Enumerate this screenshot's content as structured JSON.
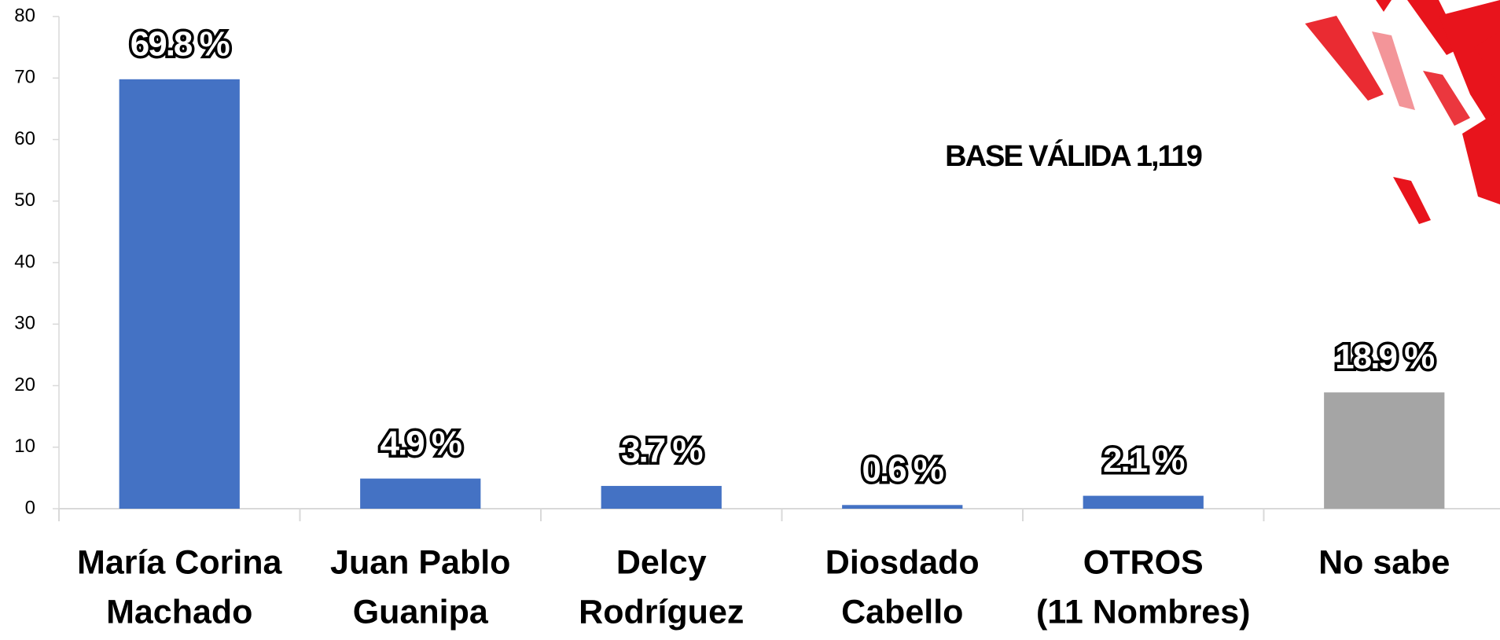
{
  "chart_data": {
    "type": "bar",
    "annotation": "BASE VÁLIDA 1,119",
    "categories": [
      [
        "María Corina",
        "Machado"
      ],
      [
        "Juan Pablo",
        "Guanipa"
      ],
      [
        "Delcy",
        "Rodríguez"
      ],
      [
        "Diosdado",
        "Cabello"
      ],
      [
        "OTROS",
        "(11 Nombres)"
      ],
      [
        "No sabe"
      ]
    ],
    "values": [
      69.8,
      4.9,
      3.7,
      0.6,
      2.1,
      18.9
    ],
    "value_labels": [
      "69.8 %",
      "4.9 %",
      "3.7 %",
      "0.6 %",
      "2.1 %",
      "18.9 %"
    ],
    "colors": [
      "#4472c4",
      "#4472c4",
      "#4472c4",
      "#4472c4",
      "#4472c4",
      "#a5a5a5"
    ],
    "ylim": [
      0,
      80
    ],
    "yticks": [
      0,
      10,
      20,
      30,
      40,
      50,
      60,
      70,
      80
    ],
    "grid": false
  }
}
